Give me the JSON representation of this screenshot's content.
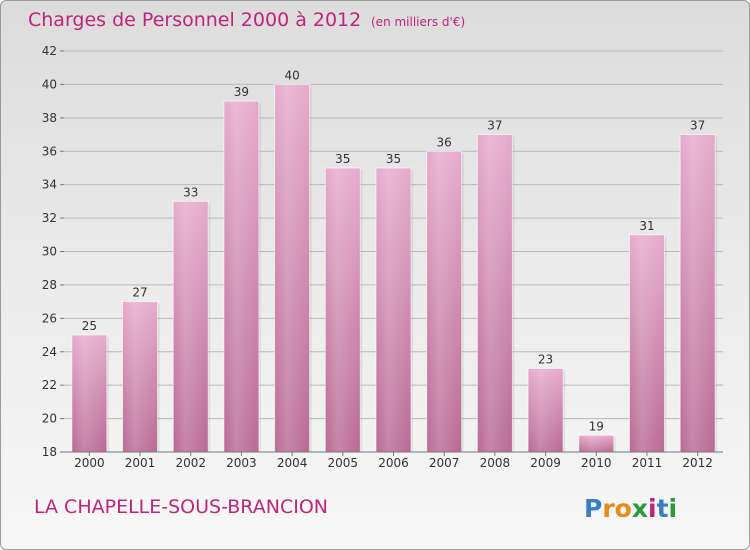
{
  "title": "Charges de Personnel 2000 à 2012",
  "subtitle": "(en milliers d'€)",
  "commune": "LA CHAPELLE-SOUS-BRANCION",
  "logo": {
    "letters": [
      "P",
      "r",
      "o",
      "x",
      "i",
      "t",
      "i"
    ],
    "colors": [
      "#3a7fc4",
      "#e88a1a",
      "#e88a1a",
      "#2a9a3a",
      "#c0247a",
      "#3a7fc4",
      "#2a9a3a"
    ]
  },
  "colors": {
    "bar": "#c9739f",
    "bar_light": "#e6aacb",
    "accent": "#c0247a"
  },
  "chart_data": {
    "type": "bar",
    "categories": [
      "2000",
      "2001",
      "2002",
      "2003",
      "2004",
      "2005",
      "2006",
      "2007",
      "2008",
      "2009",
      "2010",
      "2011",
      "2012"
    ],
    "values": [
      25,
      27,
      33,
      39,
      40,
      35,
      35,
      36,
      37,
      23,
      19,
      31,
      37
    ],
    "ylim": [
      18,
      42
    ],
    "yticks": [
      18,
      20,
      22,
      24,
      26,
      28,
      30,
      32,
      34,
      36,
      38,
      40,
      42
    ],
    "grid": true,
    "xlabel": "",
    "ylabel": ""
  }
}
